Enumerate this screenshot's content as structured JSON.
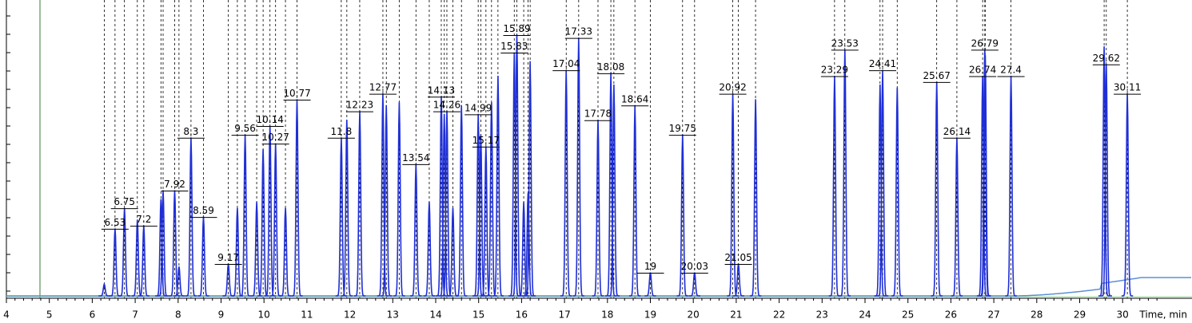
{
  "chart_data": {
    "type": "chromatogram",
    "x_label": "Time, min",
    "xlim": [
      4,
      31.5
    ],
    "xticks": [
      4,
      5,
      6,
      7,
      8,
      9,
      10,
      11,
      12,
      13,
      14,
      15,
      16,
      17,
      18,
      19,
      20,
      21,
      22,
      23,
      24,
      25,
      26,
      27,
      28,
      29,
      30
    ],
    "ylim": [
      0,
      100
    ],
    "color": "#1f2fd6",
    "labeled_peaks": {
      "x": [
        6.53,
        6.75,
        7.2,
        7.92,
        8.3,
        8.59,
        9.17,
        9.56,
        10.14,
        10.27,
        10.77,
        11.8,
        12.23,
        12.77,
        13.54,
        14.13,
        14.26,
        14.99,
        15.17,
        15.83,
        15.89,
        17.04,
        17.33,
        17.78,
        18.08,
        18.64,
        19.0,
        19.75,
        20.03,
        20.92,
        21.05,
        23.29,
        23.53,
        24.41,
        25.67,
        26.14,
        26.74,
        26.79,
        27.4,
        29.62,
        30.11
      ],
      "values": [
        23,
        30,
        24,
        36,
        54,
        27,
        11,
        55,
        58,
        52,
        67,
        54,
        63,
        69,
        45,
        68,
        63,
        62,
        51,
        83,
        89,
        77,
        88,
        60,
        76,
        65,
        8,
        55,
        8,
        69,
        11,
        75,
        84,
        77,
        73,
        54,
        75,
        84,
        75,
        79,
        69
      ]
    },
    "unlabeled_peaks": {
      "x": [
        6.28,
        7.05,
        7.6,
        7.65,
        8.02,
        9.38,
        9.83,
        9.98,
        10.5,
        11.93,
        12.85,
        13.15,
        13.85,
        14.2,
        14.4,
        14.6,
        15.05,
        15.3,
        15.45,
        16.05,
        16.15,
        16.2,
        18.15,
        21.45,
        24.35,
        24.75,
        26.8,
        29.57
      ],
      "values": [
        4,
        26,
        33,
        36,
        10,
        30,
        32,
        50,
        30,
        60,
        65,
        66,
        32,
        62,
        30,
        65,
        55,
        66,
        75,
        32,
        35,
        80,
        72,
        67,
        72,
        71,
        82,
        85
      ]
    }
  }
}
